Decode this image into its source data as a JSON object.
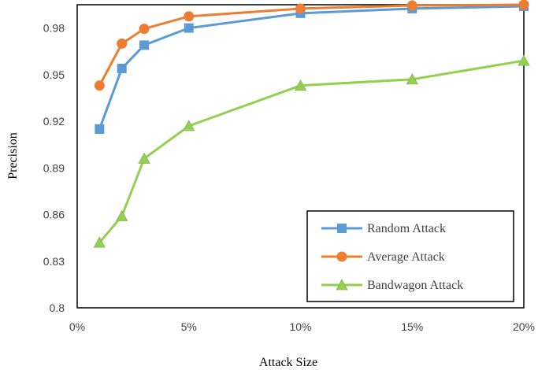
{
  "chart_data": {
    "type": "line",
    "x": [
      1,
      2,
      3,
      5,
      10,
      15,
      20
    ],
    "xlabel": "Attack Size",
    "ylabel": "Precision",
    "xlim": [
      0,
      20
    ],
    "ylim": [
      0.8,
      0.995
    ],
    "x_ticks": [
      0,
      5,
      10,
      15,
      20
    ],
    "x_tick_labels": [
      "0%",
      "5%",
      "10%",
      "15%",
      "20%"
    ],
    "y_ticks": [
      0.8,
      0.83,
      0.86,
      0.89,
      0.92,
      0.95,
      0.98
    ],
    "y_tick_labels": [
      "0.8",
      "0.83",
      "0.86",
      "0.89",
      "0.92",
      "0.95",
      "0.98"
    ],
    "grid": false,
    "legend_position": "bottom-right",
    "series": [
      {
        "name": "Random Attack",
        "marker": "square",
        "color": "#5B9BD5",
        "values": [
          0.915,
          0.954,
          0.969,
          0.98,
          0.9895,
          0.9925,
          0.994
        ]
      },
      {
        "name": "Average Attack",
        "marker": "circle",
        "color": "#ED7D31",
        "values": [
          0.943,
          0.97,
          0.9795,
          0.9875,
          0.9925,
          0.9945,
          0.995
        ]
      },
      {
        "name": "Bandwagon Attack",
        "marker": "triangle",
        "color": "#92D050",
        "values": [
          0.842,
          0.859,
          0.896,
          0.917,
          0.943,
          0.947,
          0.959
        ]
      }
    ]
  }
}
